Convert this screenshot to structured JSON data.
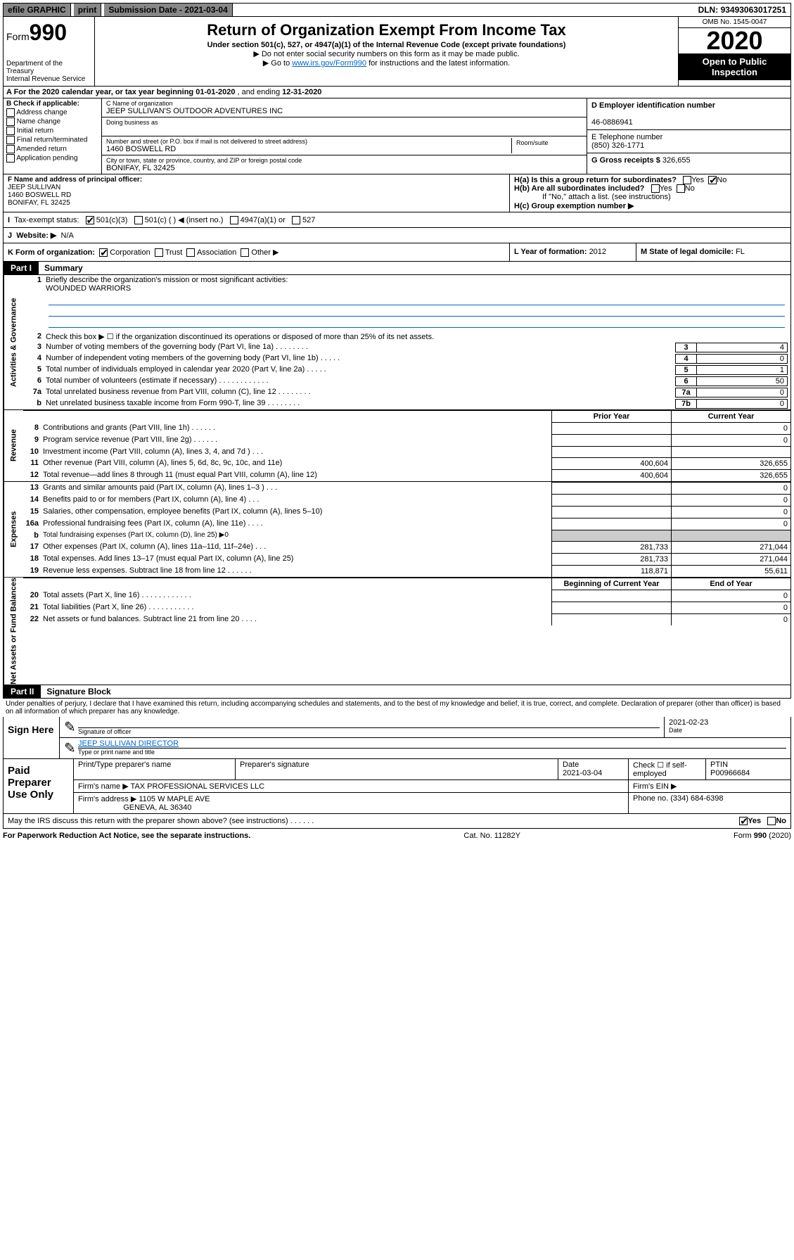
{
  "topbar": {
    "efile": "efile GRAPHIC",
    "print": "print",
    "subdate_label": "Submission Date - ",
    "subdate": "2021-03-04",
    "dln_label": "DLN: ",
    "dln": "93493063017251"
  },
  "header": {
    "form_prefix": "Form",
    "form_num": "990",
    "dept": "Department of the Treasury\nInternal Revenue Service",
    "title": "Return of Organization Exempt From Income Tax",
    "sub": "Under section 501(c), 527, or 4947(a)(1) of the Internal Revenue Code (except private foundations)",
    "arrow1": "▶ Do not enter social security numbers on this form as it may be made public.",
    "arrow2_pre": "▶ Go to ",
    "arrow2_link": "www.irs.gov/Form990",
    "arrow2_post": " for instructions and the latest information.",
    "omb": "OMB No. 1545-0047",
    "year": "2020",
    "open": "Open to Public Inspection"
  },
  "rowA": {
    "text_pre": "A For the 2020 calendar year, or tax year beginning ",
    "begin": "01-01-2020",
    "mid": " , and ending ",
    "end": "12-31-2020"
  },
  "colB": {
    "hdr": "B Check if applicable:",
    "items": [
      "Address change",
      "Name change",
      "Initial return",
      "Final return/terminated",
      "Amended return",
      "Application pending"
    ]
  },
  "colC": {
    "name_lbl": "C Name of organization",
    "name": "JEEP SULLIVAN'S OUTDOOR ADVENTURES INC",
    "dba_lbl": "Doing business as",
    "addr_lbl": "Number and street (or P.O. box if mail is not delivered to street address)",
    "room_lbl": "Room/suite",
    "addr": "1460 BOSWELL RD",
    "city_lbl": "City or town, state or province, country, and ZIP or foreign postal code",
    "city": "BONIFAY, FL  32425"
  },
  "colD": {
    "ein_lbl": "D Employer identification number",
    "ein": "46-0886941",
    "tel_lbl": "E Telephone number",
    "tel": "(850) 326-1771",
    "gross_lbl": "G Gross receipts $ ",
    "gross": "326,655"
  },
  "colF": {
    "lbl": "F Name and address of principal officer:",
    "name": "JEEP SULLIVAN",
    "addr1": "1460 BOSWELL RD",
    "addr2": "BONIFAY, FL  32425"
  },
  "colH": {
    "ha": "H(a)  Is this a group return for subordinates?",
    "hb": "H(b)  Are all subordinates included?",
    "hb_note": "If \"No,\" attach a list. (see instructions)",
    "hc": "H(c)  Group exemption number ▶",
    "yes": "Yes",
    "no": "No"
  },
  "rowI": {
    "lbl": "Tax-exempt status:",
    "opts": [
      "501(c)(3)",
      "501(c) (  ) ◀ (insert no.)",
      "4947(a)(1) or",
      "527"
    ]
  },
  "rowJ": {
    "lbl": "Website: ▶",
    "val": "N/A"
  },
  "rowK": {
    "lbl": "K Form of organization:",
    "opts": [
      "Corporation",
      "Trust",
      "Association",
      "Other ▶"
    ],
    "l_lbl": "L Year of formation: ",
    "l_val": "2012",
    "m_lbl": "M State of legal domicile: ",
    "m_val": "FL"
  },
  "part1": {
    "tab": "Part I",
    "title": "Summary",
    "vtab1": "Activities & Governance",
    "vtab2": "Revenue",
    "vtab3": "Expenses",
    "vtab4": "Net Assets or Fund Balances",
    "line1_lbl": "Briefly describe the organization's mission or most significant activities:",
    "line1_val": "WOUNDED WARRIORS",
    "line2": "Check this box ▶ ☐  if the organization discontinued its operations or disposed of more than 25% of its net assets.",
    "lines_ag": [
      {
        "n": "3",
        "d": "Number of voting members of the governing body (Part VI, line 1a)  .    .    .    .    .    .    .    .",
        "b": "3",
        "v": "4"
      },
      {
        "n": "4",
        "d": "Number of independent voting members of the governing body (Part VI, line 1b)  .    .    .    .    .",
        "b": "4",
        "v": "0"
      },
      {
        "n": "5",
        "d": "Total number of individuals employed in calendar year 2020 (Part V, line 2a)  .    .    .    .    .",
        "b": "5",
        "v": "1"
      },
      {
        "n": "6",
        "d": "Total number of volunteers (estimate if necessary)  .    .    .    .    .    .    .    .    .    .    .    .",
        "b": "6",
        "v": "50"
      },
      {
        "n": "7a",
        "d": "Total unrelated business revenue from Part VIII, column (C), line 12  .    .    .    .    .    .    .    .",
        "b": "7a",
        "v": "0"
      },
      {
        "n": "b",
        "d": "Net unrelated business taxable income from Form 990-T, line 39  .    .    .    .    .    .    .    .",
        "b": "7b",
        "v": "0"
      }
    ],
    "hdr_prior": "Prior Year",
    "hdr_current": "Current Year",
    "lines_rev": [
      {
        "n": "8",
        "d": "Contributions and grants (Part VIII, line 1h)  .    .    .    .    .    .",
        "c1": "",
        "c2": "0"
      },
      {
        "n": "9",
        "d": "Program service revenue (Part VIII, line 2g)  .    .    .    .    .    .",
        "c1": "",
        "c2": "0"
      },
      {
        "n": "10",
        "d": "Investment income (Part VIII, column (A), lines 3, 4, and 7d )  .    .    .",
        "c1": "",
        "c2": ""
      },
      {
        "n": "11",
        "d": "Other revenue (Part VIII, column (A), lines 5, 6d, 8c, 9c, 10c, and 11e)",
        "c1": "400,604",
        "c2": "326,655"
      },
      {
        "n": "12",
        "d": "Total revenue—add lines 8 through 11 (must equal Part VIII, column (A), line 12)",
        "c1": "400,604",
        "c2": "326,655"
      }
    ],
    "lines_exp": [
      {
        "n": "13",
        "d": "Grants and similar amounts paid (Part IX, column (A), lines 1–3 )  .    .    .",
        "c1": "",
        "c2": "0"
      },
      {
        "n": "14",
        "d": "Benefits paid to or for members (Part IX, column (A), line 4)  .    .    .",
        "c1": "",
        "c2": "0"
      },
      {
        "n": "15",
        "d": "Salaries, other compensation, employee benefits (Part IX, column (A), lines 5–10)",
        "c1": "",
        "c2": "0"
      },
      {
        "n": "16a",
        "d": "Professional fundraising fees (Part IX, column (A), line 11e)  .    .    .    .",
        "c1": "",
        "c2": "0"
      },
      {
        "n": "b",
        "d": "Total fundraising expenses (Part IX, column (D), line 25) ▶0",
        "shade": true
      },
      {
        "n": "17",
        "d": "Other expenses (Part IX, column (A), lines 11a–11d, 11f–24e)  .    .    .",
        "c1": "281,733",
        "c2": "271,044"
      },
      {
        "n": "18",
        "d": "Total expenses. Add lines 13–17 (must equal Part IX, column (A), line 25)",
        "c1": "281,733",
        "c2": "271,044"
      },
      {
        "n": "19",
        "d": "Revenue less expenses. Subtract line 18 from line 12  .    .    .    .    .    .",
        "c1": "118,871",
        "c2": "55,611"
      }
    ],
    "hdr_begin": "Beginning of Current Year",
    "hdr_end": "End of Year",
    "lines_net": [
      {
        "n": "20",
        "d": "Total assets (Part X, line 16)  .    .    .    .    .    .    .    .    .    .    .    .",
        "c1": "",
        "c2": "0"
      },
      {
        "n": "21",
        "d": "Total liabilities (Part X, line 26)  .    .    .    .    .    .    .    .    .    .    .",
        "c1": "",
        "c2": "0"
      },
      {
        "n": "22",
        "d": "Net assets or fund balances. Subtract line 21 from line 20  .    .    .    .",
        "c1": "",
        "c2": "0"
      }
    ]
  },
  "part2": {
    "tab": "Part II",
    "title": "Signature Block",
    "perjury": "Under penalties of perjury, I declare that I have examined this return, including accompanying schedules and statements, and to the best of my knowledge and belief, it is true, correct, and complete. Declaration of preparer (other than officer) is based on all information of which preparer has any knowledge.",
    "sign_here": "Sign Here",
    "sig_officer_lbl": "Signature of officer",
    "sig_date": "2021-02-23",
    "date_lbl": "Date",
    "officer_name": "JEEP SULLIVAN  DIRECTOR",
    "officer_name_lbl": "Type or print name and title",
    "paid": "Paid Preparer Use Only",
    "prep_name_lbl": "Print/Type preparer's name",
    "prep_sig_lbl": "Preparer's signature",
    "prep_date_lbl": "Date",
    "prep_date": "2021-03-04",
    "self_emp": "Check ☐ if self-employed",
    "ptin_lbl": "PTIN",
    "ptin": "P00966684",
    "firm_name_lbl": "Firm's name    ▶ ",
    "firm_name": "TAX PROFESSIONAL SERVICES LLC",
    "firm_ein_lbl": "Firm's EIN ▶",
    "firm_addr_lbl": "Firm's address ▶ ",
    "firm_addr1": "1105 W MAPLE AVE",
    "firm_addr2": "GENEVA, AL  36340",
    "phone_lbl": "Phone no. ",
    "phone": "(334) 684-6398",
    "discuss": "May the IRS discuss this return with the preparer shown above? (see instructions)  .    .    .    .    .    .",
    "discuss_yes": "Yes",
    "discuss_no": "No"
  },
  "footer": {
    "left": "For Paperwork Reduction Act Notice, see the separate instructions.",
    "mid": "Cat. No. 11282Y",
    "right": "Form 990 (2020)"
  }
}
